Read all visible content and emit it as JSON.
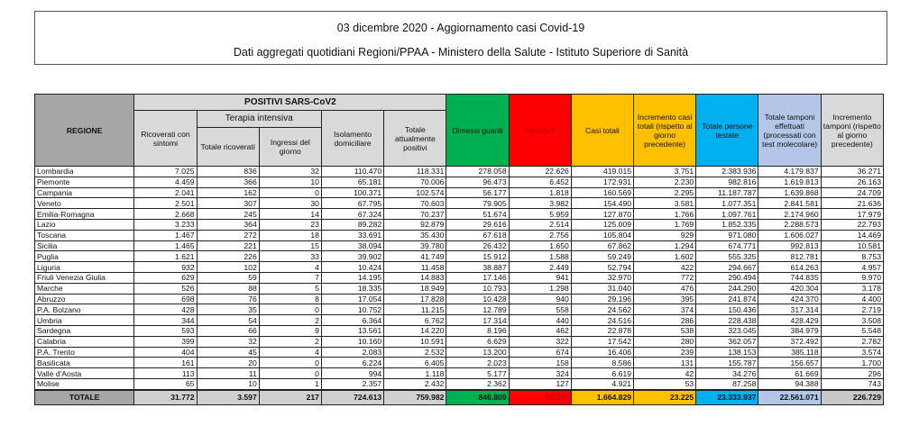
{
  "title": "03 dicembre 2020 - Aggiornamento casi Covid-19",
  "subtitle": "Dati aggregati quotidiani Regioni/PPAA - Ministero della Salute - Istituto Superiore di Sanità",
  "colors": {
    "regione": "#a6a6a6",
    "header_gray": "#d9d9d9",
    "dimessi": "#00b050",
    "deceduti": "#ff0000",
    "deceduti_text": "#c00000",
    "casi": "#ffc000",
    "persone": "#00b0f0",
    "tamponi": "#b4c6e7",
    "incremento_tamponi": "#d9d9d9"
  },
  "headers": {
    "regione": "REGIONE",
    "positivi": "POSITIVI SARS-CoV2",
    "ricoverati": "Ricoverati con sintomi",
    "terapia": "Terapia intensiva",
    "totale_ricoverati": "Totale ricoverati",
    "ingressi": "Ingressi del giorno",
    "isolamento": "Isolamento domiciliare",
    "totale_positivi": "Totale attualmente positivi",
    "dimessi": "Dimessi guariti",
    "deceduti": "Deceduti",
    "casi": "Casi totali",
    "incremento_casi": "Incremento casi totali (rispetto al giorno precedente)",
    "persone": "Totale persone testate",
    "tamponi": "Totale tamponi effettuati (processati con test molecolare)",
    "incremento_tamponi": "Incremento tamponi (rispetto al giorno precedente)"
  },
  "rows": [
    [
      "Lombardia",
      "7.025",
      "836",
      "32",
      "110.470",
      "118.331",
      "278.058",
      "22.626",
      "419.015",
      "3.751",
      "2.383.936",
      "4.179.837",
      "36.271"
    ],
    [
      "Piemonte",
      "4.459",
      "366",
      "10",
      "65.181",
      "70.006",
      "96.473",
      "6.452",
      "172.931",
      "2.230",
      "982.816",
      "1.619.813",
      "26.163"
    ],
    [
      "Campania",
      "2.041",
      "162",
      "0",
      "100.371",
      "102.574",
      "56.177",
      "1.818",
      "160.569",
      "2.295",
      "11.187.787",
      "1.639.868",
      "24.709"
    ],
    [
      "Veneto",
      "2.501",
      "307",
      "30",
      "67.795",
      "70.603",
      "79.905",
      "3.982",
      "154.490",
      "3.581",
      "1.077.351",
      "2.841.581",
      "21.636"
    ],
    [
      "Emilia-Romagna",
      "2.668",
      "245",
      "14",
      "67.324",
      "70.237",
      "51.674",
      "5.959",
      "127.870",
      "1.766",
      "1.097.761",
      "2.174.960",
      "17.979"
    ],
    [
      "Lazio",
      "3.233",
      "364",
      "23",
      "89.282",
      "92.879",
      "29.616",
      "2.514",
      "125.009",
      "1.769",
      "1.852.335",
      "2.288.573",
      "22.793"
    ],
    [
      "Toscana",
      "1.467",
      "272",
      "18",
      "33.691",
      "35.430",
      "67.618",
      "2.756",
      "105.804",
      "929",
      "971.080",
      "1.606.027",
      "14.469"
    ],
    [
      "Sicilia",
      "1.465",
      "221",
      "15",
      "38.094",
      "39.780",
      "26.432",
      "1.650",
      "67.862",
      "1.294",
      "674.771",
      "992.813",
      "10.581"
    ],
    [
      "Puglia",
      "1.621",
      "226",
      "33",
      "39.902",
      "41.749",
      "15.912",
      "1.588",
      "59.249",
      "1.602",
      "555.325",
      "812.781",
      "8.753"
    ],
    [
      "Liguria",
      "932",
      "102",
      "4",
      "10.424",
      "11.458",
      "38.887",
      "2.449",
      "52.794",
      "422",
      "294.667",
      "614.263",
      "4.957"
    ],
    [
      "Friuli Venezia Giulia",
      "629",
      "59",
      "7",
      "14.195",
      "14.883",
      "17.146",
      "941",
      "32.970",
      "772",
      "290.494",
      "744.835",
      "9.970"
    ],
    [
      "Marche",
      "526",
      "88",
      "5",
      "18.335",
      "18.949",
      "10.793",
      "1.298",
      "31.040",
      "476",
      "244.290",
      "420.304",
      "3.178"
    ],
    [
      "Abruzzo",
      "698",
      "76",
      "8",
      "17.054",
      "17.828",
      "10.428",
      "940",
      "29.196",
      "395",
      "241.874",
      "424.370",
      "4.400"
    ],
    [
      "P.A. Bolzano",
      "428",
      "35",
      "0",
      "10.752",
      "11.215",
      "12.789",
      "558",
      "24.562",
      "374",
      "150.436",
      "317.314",
      "2.719"
    ],
    [
      "Umbria",
      "344",
      "54",
      "2",
      "6.364",
      "6.762",
      "17.314",
      "440",
      "24.516",
      "286",
      "228.438",
      "428.429",
      "3.508"
    ],
    [
      "Sardegna",
      "593",
      "66",
      "9",
      "13.561",
      "14.220",
      "8.196",
      "462",
      "22.878",
      "538",
      "323.045",
      "384.979",
      "5.548"
    ],
    [
      "Calabria",
      "399",
      "32",
      "2",
      "10.160",
      "10.591",
      "6.629",
      "322",
      "17.542",
      "280",
      "362.057",
      "372.492",
      "2.782"
    ],
    [
      "P.A. Trento",
      "404",
      "45",
      "4",
      "2.083",
      "2.532",
      "13.200",
      "674",
      "16.406",
      "239",
      "138.153",
      "385.118",
      "3.574"
    ],
    [
      "Basilicata",
      "161",
      "20",
      "0",
      "6.224",
      "6.405",
      "2.023",
      "158",
      "8.586",
      "131",
      "155.787",
      "156.657",
      "1.700"
    ],
    [
      "Valle d'Aosta",
      "113",
      "11",
      "0",
      "994",
      "1.118",
      "5.177",
      "324",
      "6.619",
      "42",
      "34.276",
      "61.669",
      "296"
    ],
    [
      "Molise",
      "65",
      "10",
      "1",
      "2.357",
      "2.432",
      "2.362",
      "127",
      "4.921",
      "53",
      "87.258",
      "94.388",
      "743"
    ]
  ],
  "total": [
    "TOTALE",
    "31.772",
    "3.597",
    "217",
    "724.613",
    "759.982",
    "846.809",
    "58.038",
    "1.664.829",
    "23.225",
    "23.333.937",
    "22.561.071",
    "226.729"
  ]
}
